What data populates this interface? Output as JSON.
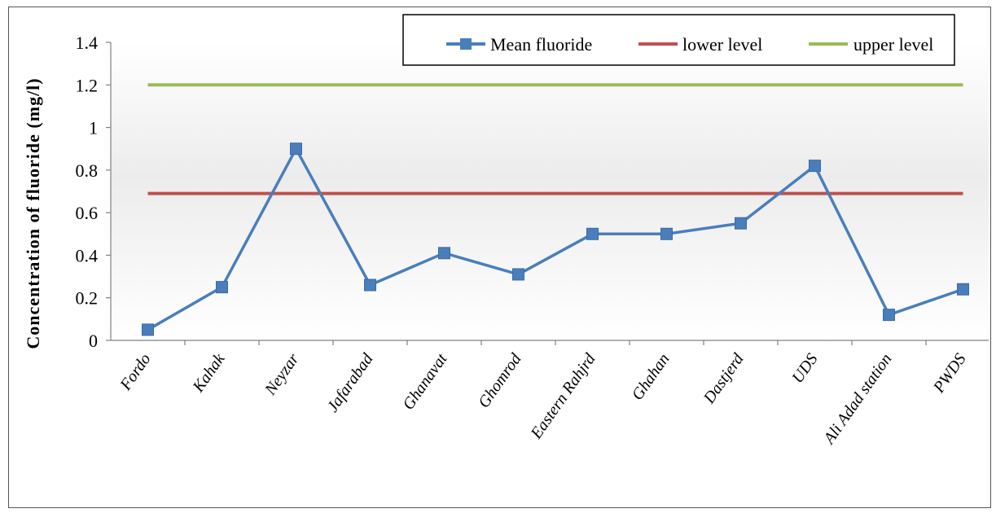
{
  "chart_data": {
    "type": "line",
    "title": "",
    "xlabel": "",
    "ylabel": "Concentration of fluoride (mg/l)",
    "ylim": [
      0,
      1.4
    ],
    "yticks": [
      "0",
      "0.2",
      "0.4",
      "0.6",
      "0.8",
      "1",
      "1.2",
      "1.4"
    ],
    "grid": false,
    "legend": "top-right",
    "categories": [
      "Fordo",
      "Kahak",
      "Neyzar",
      "Jafarabad",
      "Ghanavat",
      "Ghomrod",
      "Eastern Rahjrd",
      "Ghahan",
      "Dastjerd",
      "UDS",
      "Ali Adad station",
      "PWDS"
    ],
    "series": [
      {
        "name": "Mean fluoride",
        "color": "#4a7ebb",
        "marker": "square",
        "values": [
          0.05,
          0.25,
          0.9,
          0.26,
          0.41,
          0.31,
          0.5,
          0.5,
          0.55,
          0.82,
          0.12,
          0.24
        ]
      },
      {
        "name": "lower level",
        "color": "#c0504d",
        "values": [
          0.69,
          0.69,
          0.69,
          0.69,
          0.69,
          0.69,
          0.69,
          0.69,
          0.69,
          0.69,
          0.69,
          0.69
        ]
      },
      {
        "name": "upper level",
        "color": "#9bbb59",
        "values": [
          1.2,
          1.2,
          1.2,
          1.2,
          1.2,
          1.2,
          1.2,
          1.2,
          1.2,
          1.2,
          1.2,
          1.2
        ]
      }
    ]
  }
}
